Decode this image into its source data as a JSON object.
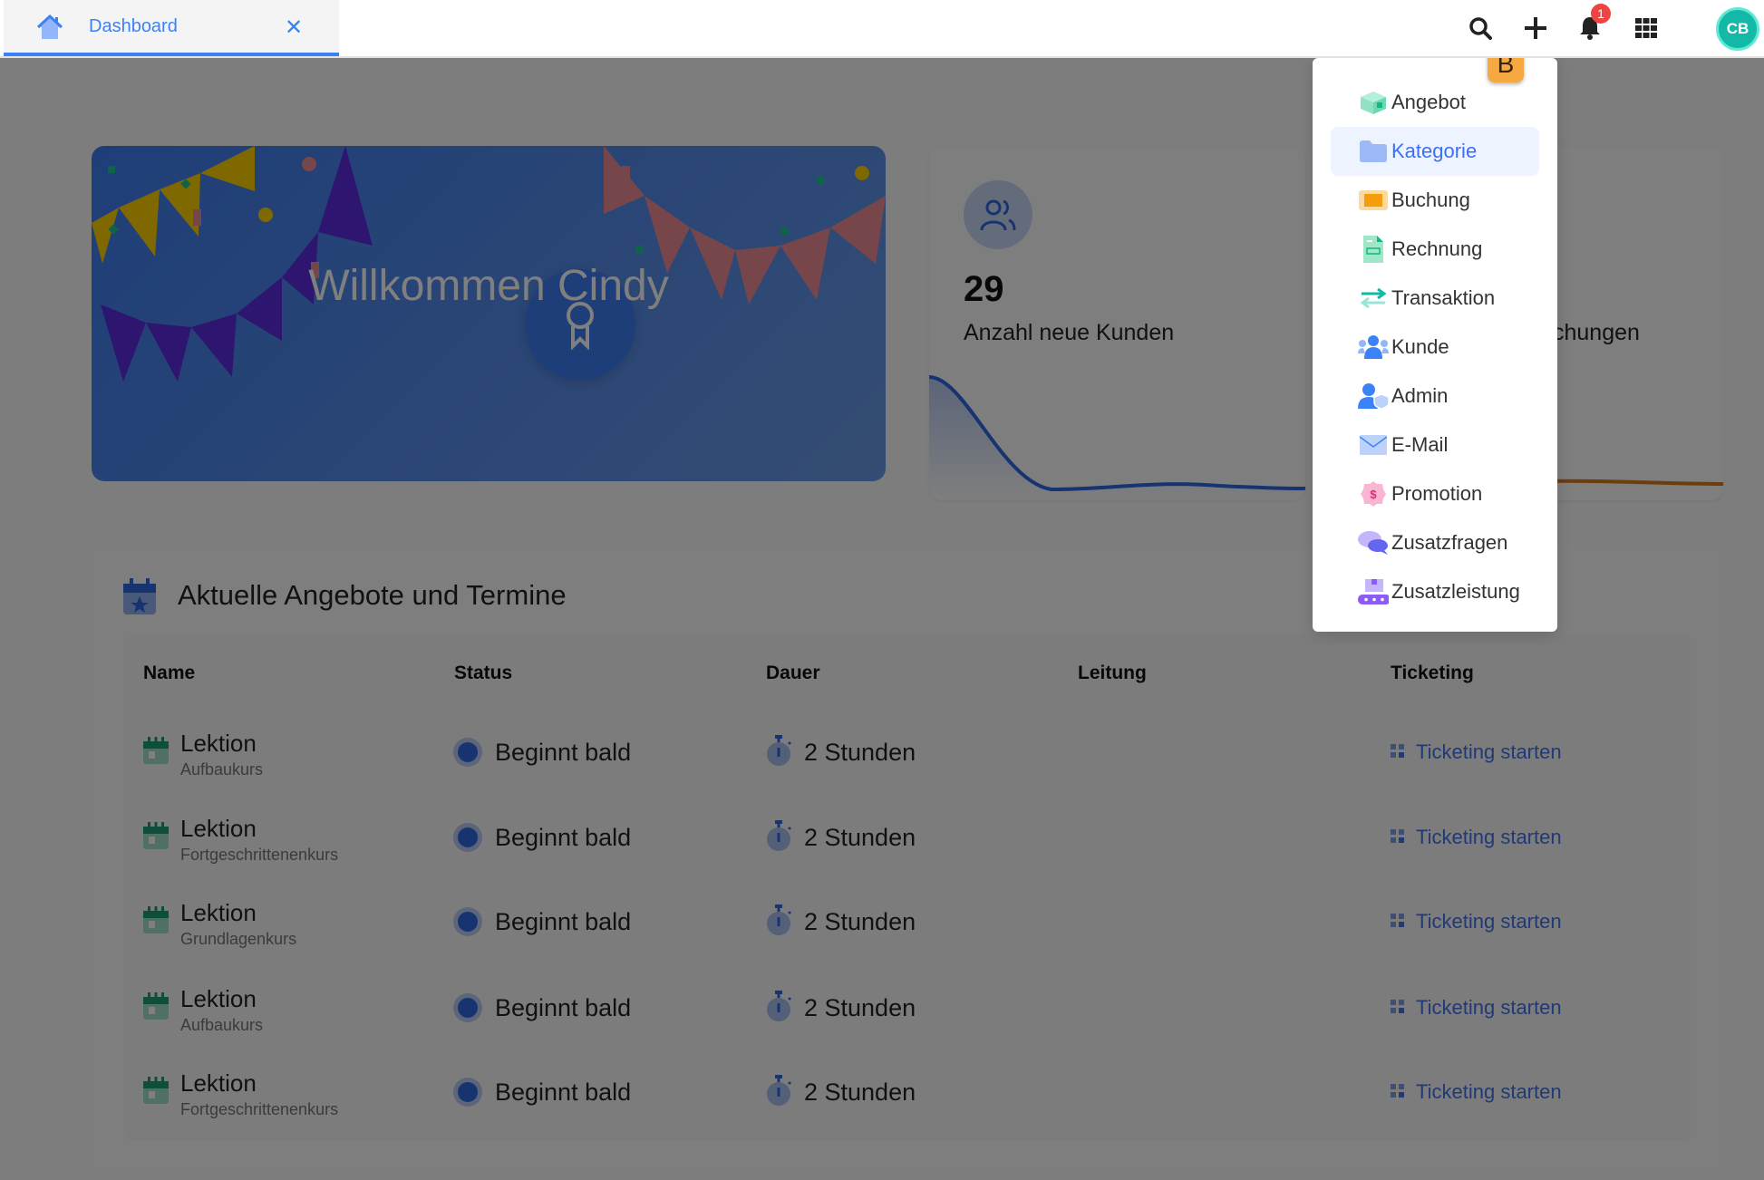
{
  "header": {
    "tab": {
      "label": "Dashboard",
      "icon": "home-icon",
      "close_icon": "close-icon",
      "close_glyph": "✕"
    },
    "icons": [
      "search-icon",
      "plus-icon",
      "bell-icon",
      "apps-grid-icon"
    ],
    "notification_count": "1",
    "avatar_initials": "CB",
    "hint_badge": "B"
  },
  "welcome": {
    "title": "Willkommen Cindy",
    "icon": "award-icon"
  },
  "stats": [
    {
      "value": "29",
      "label": "Anzahl neue Kunden",
      "icon": "users-icon",
      "color": "#2f66e0"
    },
    {
      "label_fragment": "chungen",
      "color": "#d97a1e"
    }
  ],
  "dropdown": {
    "items": [
      {
        "label": "Angebot",
        "icon": "box-icon"
      },
      {
        "label": "Kategorie",
        "icon": "folder-icon",
        "active": true
      },
      {
        "label": "Buchung",
        "icon": "ticket-icon"
      },
      {
        "label": "Rechnung",
        "icon": "invoice-icon"
      },
      {
        "label": "Transaktion",
        "icon": "transfer-icon"
      },
      {
        "label": "Kunde",
        "icon": "customers-icon"
      },
      {
        "label": "Admin",
        "icon": "admin-shield-icon"
      },
      {
        "label": "E-Mail",
        "icon": "mail-icon"
      },
      {
        "label": "Promotion",
        "icon": "promotion-dollar-icon"
      },
      {
        "label": "Zusatzfragen",
        "icon": "chat-bubbles-icon"
      },
      {
        "label": "Zusatzleistung",
        "icon": "conveyor-icon"
      }
    ]
  },
  "section": {
    "title": "Aktuelle Angebote und Termine",
    "columns": [
      "Name",
      "Status",
      "Dauer",
      "Leitung",
      "Ticketing"
    ],
    "rows": [
      {
        "name": "Lektion",
        "sub": "Aufbaukurs",
        "status": "Beginnt bald",
        "duration": "2 Stunden",
        "leitung": "",
        "ticketing": "Ticketing starten"
      },
      {
        "name": "Lektion",
        "sub": "Fortgeschrittenenkurs",
        "status": "Beginnt bald",
        "duration": "2 Stunden",
        "leitung": "",
        "ticketing": "Ticketing starten"
      },
      {
        "name": "Lektion",
        "sub": "Grundlagenkurs",
        "status": "Beginnt bald",
        "duration": "2 Stunden",
        "leitung": "",
        "ticketing": "Ticketing starten"
      },
      {
        "name": "Lektion",
        "sub": "Aufbaukurs",
        "status": "Beginnt bald",
        "duration": "2 Stunden",
        "leitung": "",
        "ticketing": "Ticketing starten"
      },
      {
        "name": "Lektion",
        "sub": "Fortgeschrittenenkurs",
        "status": "Beginnt bald",
        "duration": "2 Stunden",
        "leitung": "",
        "ticketing": "Ticketing starten"
      }
    ]
  }
}
